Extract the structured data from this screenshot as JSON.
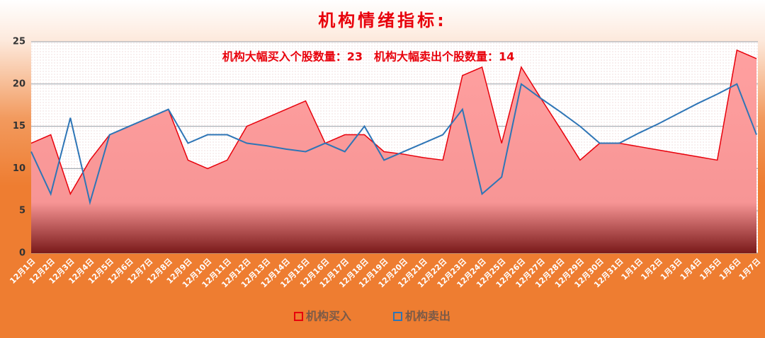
{
  "chart_data": {
    "type": "area-line",
    "title": "机构情绪指标:",
    "annotation": "机构大幅买入个股数量：23　机构大幅卖出个股数量：14",
    "categories": [
      "12月1日",
      "12月2日",
      "12月3日",
      "12月4日",
      "12月5日",
      "12月6日",
      "12月7日",
      "12月8日",
      "12月9日",
      "12月10日",
      "12月11日",
      "12月12日",
      "12月13日",
      "12月14日",
      "12月15日",
      "12月16日",
      "12月17日",
      "12月18日",
      "12月19日",
      "12月20日",
      "12月21日",
      "12月22日",
      "12月23日",
      "12月24日",
      "12月25日",
      "12月26日",
      "12月27日",
      "12月28日",
      "12月29日",
      "12月30日",
      "12月31日",
      "1月1日",
      "1月2日",
      "1月3日",
      "1月4日",
      "1月5日",
      "1月6日",
      "1月7日"
    ],
    "series": [
      {
        "name": "机构买入",
        "color": "#e8000b",
        "kind": "area",
        "values": [
          13,
          14,
          7,
          11,
          14,
          15,
          16,
          17,
          11,
          10,
          11,
          15,
          16,
          17,
          18,
          13,
          14,
          14,
          12,
          11.7,
          11.3,
          11,
          21,
          22,
          13,
          22,
          18.3,
          14.7,
          11,
          13,
          13,
          12.6,
          12.2,
          11.8,
          11.4,
          11,
          24,
          23
        ]
      },
      {
        "name": "机构卖出",
        "color": "#2e75b6",
        "kind": "line",
        "values": [
          12,
          7,
          16,
          6,
          14,
          15,
          16,
          17,
          13,
          14,
          14,
          13,
          12.7,
          12.3,
          12,
          13,
          12,
          15,
          11,
          12,
          13,
          14,
          17,
          7,
          9,
          20,
          18.3,
          16.7,
          15,
          13,
          13,
          14.2,
          15.3,
          16.5,
          17.7,
          18.8,
          20,
          14
        ]
      }
    ],
    "ylim": [
      0,
      25
    ],
    "yticks": [
      0,
      5,
      10,
      15,
      20,
      25
    ],
    "grid": true
  }
}
